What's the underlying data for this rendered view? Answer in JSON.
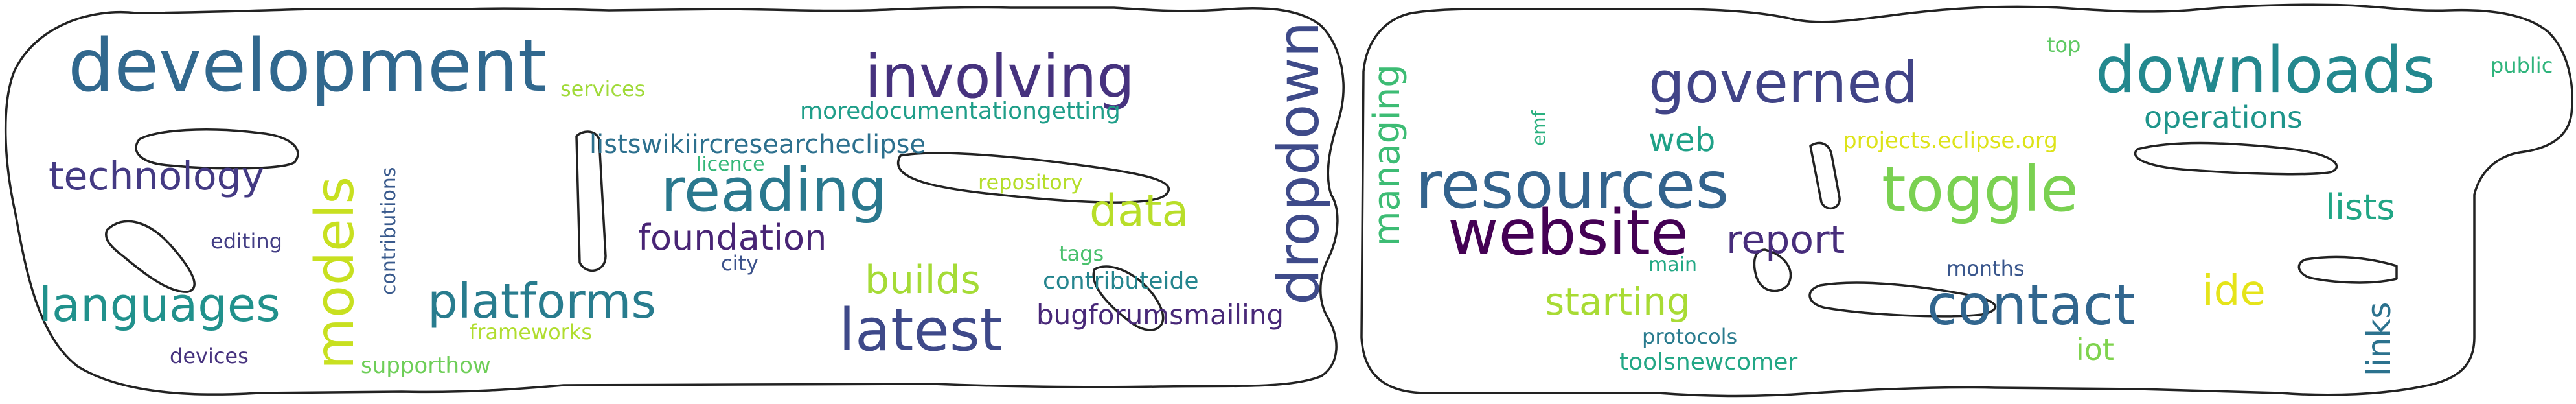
{
  "cloud": {
    "left_mask": "left-outline",
    "right_mask": "right-outline",
    "words": [
      {
        "text": "development",
        "color": "#31688e"
      },
      {
        "text": "involving",
        "color": "#46327e"
      },
      {
        "text": "dropdown",
        "color": "#3e4a89"
      },
      {
        "text": "services",
        "color": "#a0da39"
      },
      {
        "text": "moredocumentationgetting",
        "color": "#1f9e89"
      },
      {
        "text": "listswikiircresearcheclipse",
        "color": "#2d708e"
      },
      {
        "text": "licence",
        "color": "#35b779"
      },
      {
        "text": "technology",
        "color": "#443a83"
      },
      {
        "text": "models",
        "color": "#c8e020"
      },
      {
        "text": "contributions",
        "color": "#38598c"
      },
      {
        "text": "reading",
        "color": "#2a788e"
      },
      {
        "text": "repository",
        "color": "#b5de2b"
      },
      {
        "text": "data",
        "color": "#b8de29"
      },
      {
        "text": "editing",
        "color": "#433e85"
      },
      {
        "text": "foundation",
        "color": "#482475"
      },
      {
        "text": "tags",
        "color": "#4ac16d"
      },
      {
        "text": "city",
        "color": "#3b528b"
      },
      {
        "text": "builds",
        "color": "#a5db36"
      },
      {
        "text": "contributeide",
        "color": "#25858e"
      },
      {
        "text": "languages",
        "color": "#21918c"
      },
      {
        "text": "platforms",
        "color": "#287c8e"
      },
      {
        "text": "latest",
        "color": "#3e4989"
      },
      {
        "text": "bugforumsmailing",
        "color": "#482878"
      },
      {
        "text": "frameworks",
        "color": "#b0dd2f"
      },
      {
        "text": "devices",
        "color": "#46327e"
      },
      {
        "text": "supporthow",
        "color": "#6ece58"
      },
      {
        "text": "managing",
        "color": "#3dbc74"
      },
      {
        "text": "emf",
        "color": "#2ab07f"
      },
      {
        "text": "governed",
        "color": "#414487"
      },
      {
        "text": "web",
        "color": "#1fa187"
      },
      {
        "text": "resources",
        "color": "#33638d"
      },
      {
        "text": "website",
        "color": "#440154"
      },
      {
        "text": "main",
        "color": "#22a884"
      },
      {
        "text": "report",
        "color": "#472d7b"
      },
      {
        "text": "starting",
        "color": "#a8db34"
      },
      {
        "text": "protocols",
        "color": "#297b8e"
      },
      {
        "text": "toolsnewcomer",
        "color": "#22a785"
      },
      {
        "text": "top",
        "color": "#5ec962"
      },
      {
        "text": "projects.eclipse.org",
        "color": "#dde318"
      },
      {
        "text": "toggle",
        "color": "#7ad151"
      },
      {
        "text": "downloads",
        "color": "#23888e"
      },
      {
        "text": "operations",
        "color": "#1f958b"
      },
      {
        "text": "public",
        "color": "#2fb47c"
      },
      {
        "text": "lists",
        "color": "#21a685"
      },
      {
        "text": "contact",
        "color": "#31668e"
      },
      {
        "text": "months",
        "color": "#39568c"
      },
      {
        "text": "ide",
        "color": "#e5e419"
      },
      {
        "text": "iot",
        "color": "#7fd34e"
      },
      {
        "text": "links",
        "color": "#2c728e"
      }
    ]
  }
}
